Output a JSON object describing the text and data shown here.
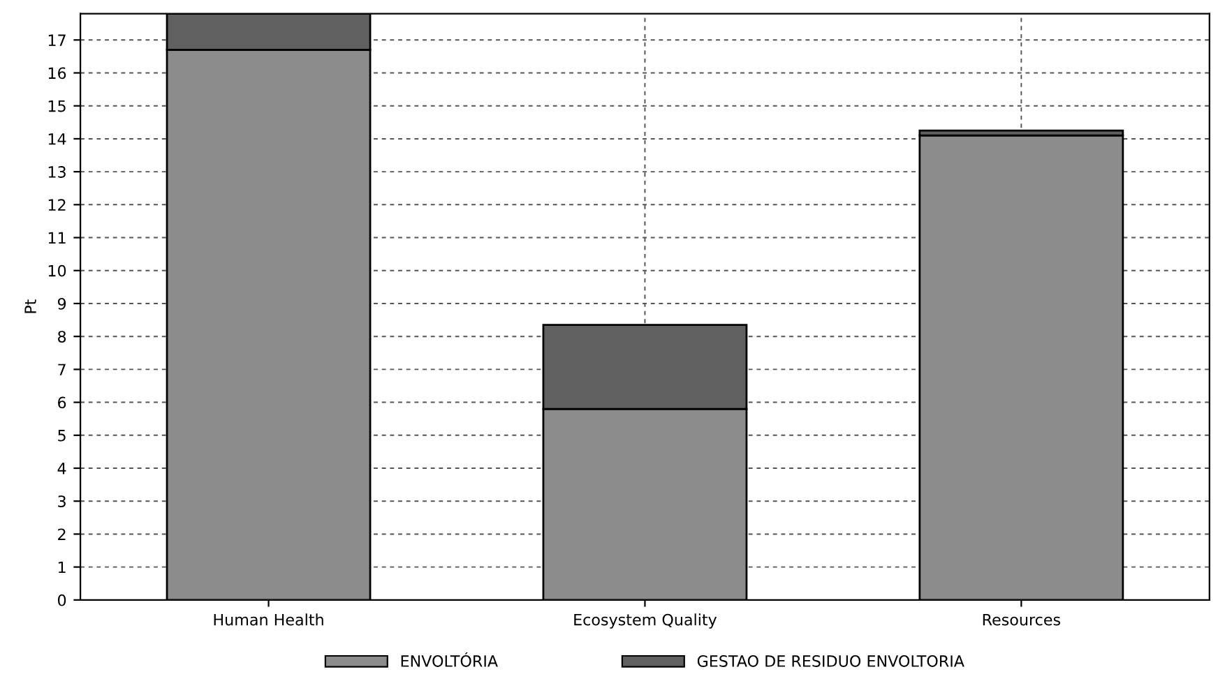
{
  "chart_data": {
    "type": "bar",
    "stacked": true,
    "ylabel": "Pt",
    "categories": [
      "Human Health",
      "Ecosystem Quality",
      "Resources"
    ],
    "series": [
      {
        "name": "ENVOLTÓRIA",
        "color": "#8c8c8c",
        "values": [
          16.7,
          5.8,
          14.1
        ]
      },
      {
        "name": "GESTAO DE RESIDUO ENVOLTORIA",
        "color": "#606060",
        "values": [
          1.1,
          2.55,
          0.15
        ]
      }
    ],
    "ylim": [
      0,
      17.8
    ],
    "yticks": [
      0,
      1,
      2,
      3,
      4,
      5,
      6,
      7,
      8,
      9,
      10,
      11,
      12,
      13,
      14,
      15,
      16,
      17
    ],
    "grid": true,
    "legend": "bottom"
  }
}
